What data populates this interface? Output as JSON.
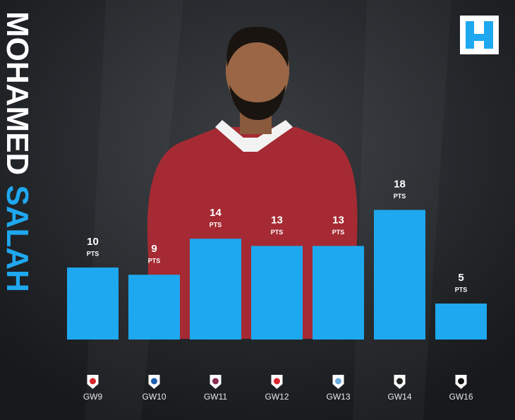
{
  "chart_data": {
    "type": "bar",
    "title_first": "MOHAMED",
    "title_last": "SALAH",
    "unit_label": "PTS",
    "categories": [
      "GW9",
      "GW10",
      "GW11",
      "GW12",
      "GW13",
      "GW14",
      "GW16"
    ],
    "values": [
      10,
      9,
      14,
      13,
      13,
      18,
      5
    ],
    "color": "#1ea8ef"
  }
}
